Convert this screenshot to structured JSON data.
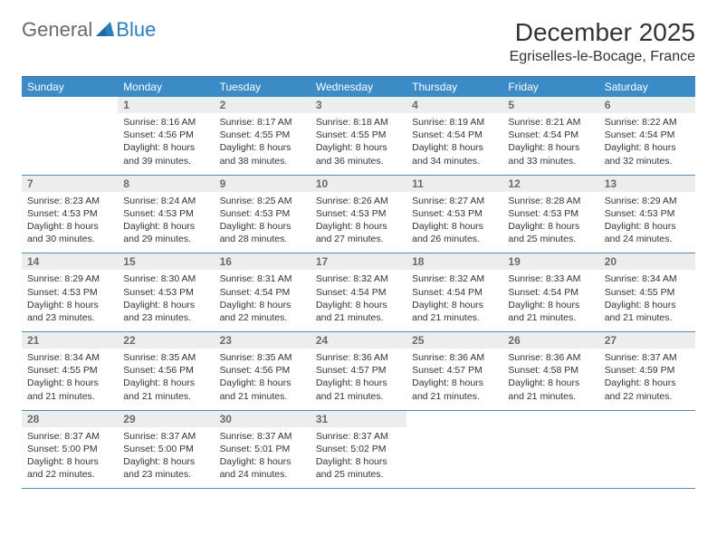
{
  "logo": {
    "word1": "General",
    "word2": "Blue",
    "color1": "#6a6a6a",
    "color2": "#2a7fbd"
  },
  "header": {
    "title": "December 2025",
    "location": "Egriselles-le-Bocage, France"
  },
  "colors": {
    "header_bg": "#3b8bc7",
    "header_text": "#ffffff",
    "daynum_bg": "#eceeee",
    "daynum_text": "#6a6a6a",
    "rule": "#5a8ab0",
    "body_text": "#333333",
    "background": "#ffffff"
  },
  "fonts": {
    "title_pt": 28,
    "location_pt": 16,
    "header_pt": 12,
    "daynum_pt": 12,
    "body_pt": 10.5
  },
  "calendar": {
    "type": "table",
    "columns": [
      "Sunday",
      "Monday",
      "Tuesday",
      "Wednesday",
      "Thursday",
      "Friday",
      "Saturday"
    ],
    "weeks": [
      [
        null,
        {
          "n": "1",
          "sr": "8:16 AM",
          "ss": "4:56 PM",
          "dl": "8 hours and 39 minutes."
        },
        {
          "n": "2",
          "sr": "8:17 AM",
          "ss": "4:55 PM",
          "dl": "8 hours and 38 minutes."
        },
        {
          "n": "3",
          "sr": "8:18 AM",
          "ss": "4:55 PM",
          "dl": "8 hours and 36 minutes."
        },
        {
          "n": "4",
          "sr": "8:19 AM",
          "ss": "4:54 PM",
          "dl": "8 hours and 34 minutes."
        },
        {
          "n": "5",
          "sr": "8:21 AM",
          "ss": "4:54 PM",
          "dl": "8 hours and 33 minutes."
        },
        {
          "n": "6",
          "sr": "8:22 AM",
          "ss": "4:54 PM",
          "dl": "8 hours and 32 minutes."
        }
      ],
      [
        {
          "n": "7",
          "sr": "8:23 AM",
          "ss": "4:53 PM",
          "dl": "8 hours and 30 minutes."
        },
        {
          "n": "8",
          "sr": "8:24 AM",
          "ss": "4:53 PM",
          "dl": "8 hours and 29 minutes."
        },
        {
          "n": "9",
          "sr": "8:25 AM",
          "ss": "4:53 PM",
          "dl": "8 hours and 28 minutes."
        },
        {
          "n": "10",
          "sr": "8:26 AM",
          "ss": "4:53 PM",
          "dl": "8 hours and 27 minutes."
        },
        {
          "n": "11",
          "sr": "8:27 AM",
          "ss": "4:53 PM",
          "dl": "8 hours and 26 minutes."
        },
        {
          "n": "12",
          "sr": "8:28 AM",
          "ss": "4:53 PM",
          "dl": "8 hours and 25 minutes."
        },
        {
          "n": "13",
          "sr": "8:29 AM",
          "ss": "4:53 PM",
          "dl": "8 hours and 24 minutes."
        }
      ],
      [
        {
          "n": "14",
          "sr": "8:29 AM",
          "ss": "4:53 PM",
          "dl": "8 hours and 23 minutes."
        },
        {
          "n": "15",
          "sr": "8:30 AM",
          "ss": "4:53 PM",
          "dl": "8 hours and 23 minutes."
        },
        {
          "n": "16",
          "sr": "8:31 AM",
          "ss": "4:54 PM",
          "dl": "8 hours and 22 minutes."
        },
        {
          "n": "17",
          "sr": "8:32 AM",
          "ss": "4:54 PM",
          "dl": "8 hours and 21 minutes."
        },
        {
          "n": "18",
          "sr": "8:32 AM",
          "ss": "4:54 PM",
          "dl": "8 hours and 21 minutes."
        },
        {
          "n": "19",
          "sr": "8:33 AM",
          "ss": "4:54 PM",
          "dl": "8 hours and 21 minutes."
        },
        {
          "n": "20",
          "sr": "8:34 AM",
          "ss": "4:55 PM",
          "dl": "8 hours and 21 minutes."
        }
      ],
      [
        {
          "n": "21",
          "sr": "8:34 AM",
          "ss": "4:55 PM",
          "dl": "8 hours and 21 minutes."
        },
        {
          "n": "22",
          "sr": "8:35 AM",
          "ss": "4:56 PM",
          "dl": "8 hours and 21 minutes."
        },
        {
          "n": "23",
          "sr": "8:35 AM",
          "ss": "4:56 PM",
          "dl": "8 hours and 21 minutes."
        },
        {
          "n": "24",
          "sr": "8:36 AM",
          "ss": "4:57 PM",
          "dl": "8 hours and 21 minutes."
        },
        {
          "n": "25",
          "sr": "8:36 AM",
          "ss": "4:57 PM",
          "dl": "8 hours and 21 minutes."
        },
        {
          "n": "26",
          "sr": "8:36 AM",
          "ss": "4:58 PM",
          "dl": "8 hours and 21 minutes."
        },
        {
          "n": "27",
          "sr": "8:37 AM",
          "ss": "4:59 PM",
          "dl": "8 hours and 22 minutes."
        }
      ],
      [
        {
          "n": "28",
          "sr": "8:37 AM",
          "ss": "5:00 PM",
          "dl": "8 hours and 22 minutes."
        },
        {
          "n": "29",
          "sr": "8:37 AM",
          "ss": "5:00 PM",
          "dl": "8 hours and 23 minutes."
        },
        {
          "n": "30",
          "sr": "8:37 AM",
          "ss": "5:01 PM",
          "dl": "8 hours and 24 minutes."
        },
        {
          "n": "31",
          "sr": "8:37 AM",
          "ss": "5:02 PM",
          "dl": "8 hours and 25 minutes."
        },
        null,
        null,
        null
      ]
    ],
    "labels": {
      "sunrise": "Sunrise:",
      "sunset": "Sunset:",
      "daylight": "Daylight:"
    }
  }
}
